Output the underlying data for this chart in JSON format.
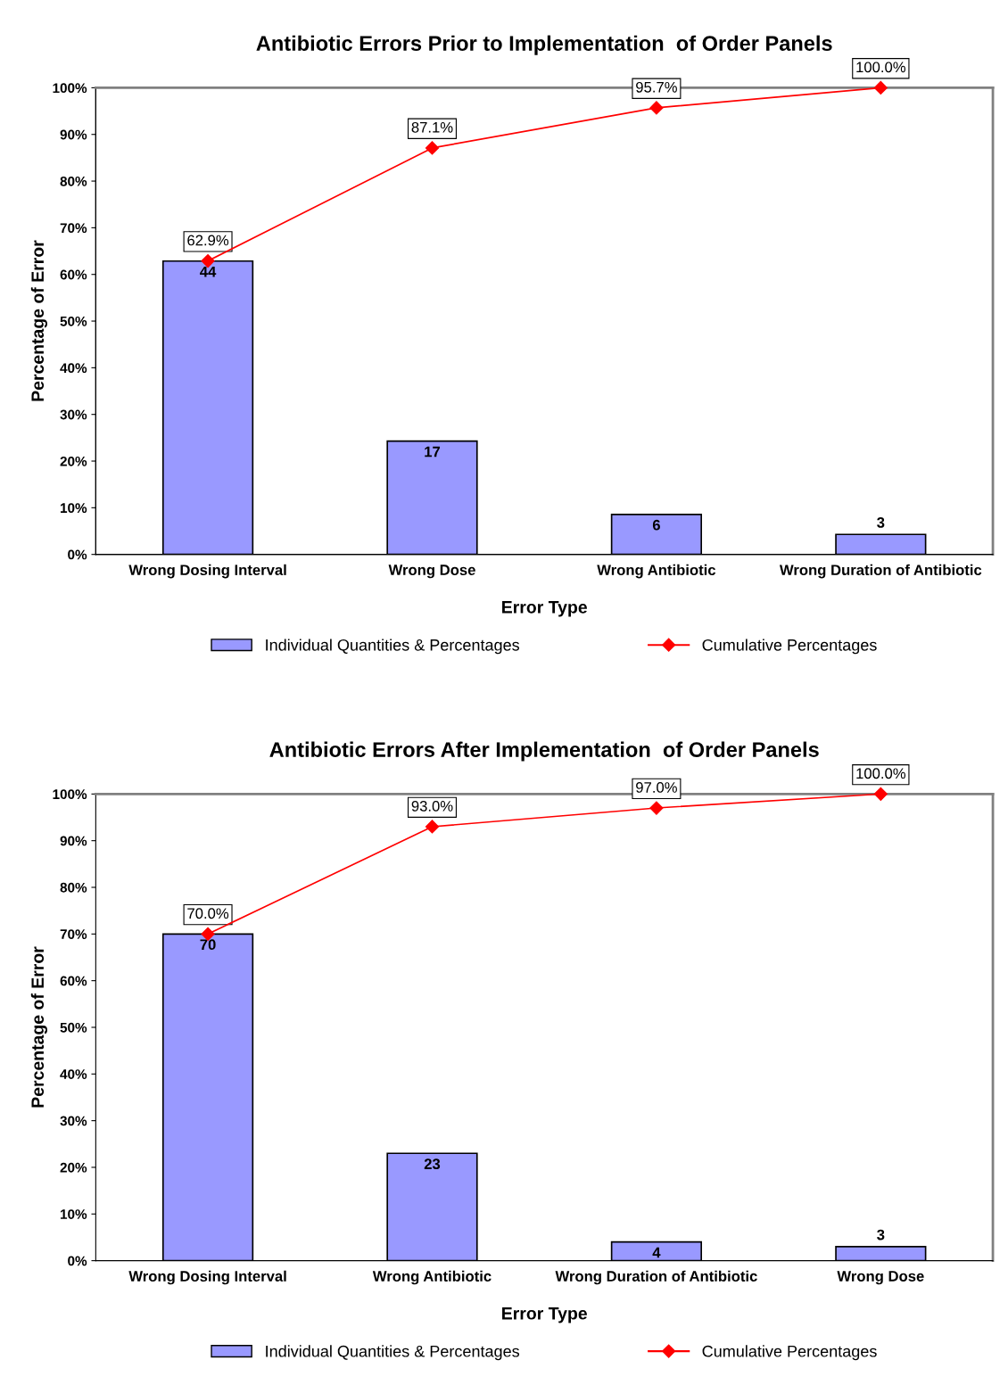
{
  "chart_data": [
    {
      "type": "bar",
      "title": "Antibiotic Errors Prior to Implementation  of Order Panels",
      "xlabel": "Error Type",
      "ylabel": "Percentage of Error",
      "categories": [
        "Wrong Dosing Interval",
        "Wrong Dose",
        "Wrong Antibiotic",
        "Wrong Duration of Antibiotic"
      ],
      "ylim": [
        0,
        100
      ],
      "yticks": [
        {
          "value": 0,
          "label": "0%"
        },
        {
          "value": 10,
          "label": "10%"
        },
        {
          "value": 20,
          "label": "20%"
        },
        {
          "value": 30,
          "label": "30%"
        },
        {
          "value": 40,
          "label": "40%"
        },
        {
          "value": 50,
          "label": "50%"
        },
        {
          "value": 60,
          "label": "60%"
        },
        {
          "value": 70,
          "label": "70%"
        },
        {
          "value": 80,
          "label": "80%"
        },
        {
          "value": 90,
          "label": "90%"
        },
        {
          "value": 100,
          "label": "100%"
        }
      ],
      "legend": "bottom",
      "grid": false,
      "y2lim": [
        0,
        70
      ],
      "series": [
        {
          "name": "Individual Quantities & Percentages",
          "axis": "y2",
          "color": "#9999ff",
          "values": [
            44,
            17,
            6,
            3
          ],
          "data_labels": true
        },
        {
          "name": "Cumulative Percentages",
          "type": "line",
          "color": "#ff0000",
          "marker": "diamond",
          "values": [
            62.9,
            87.1,
            95.7,
            100.0
          ],
          "value_labels": [
            "62.9%",
            "87.1%",
            "95.7%",
            "100.0%"
          ]
        }
      ]
    },
    {
      "type": "bar",
      "title": "Antibiotic Errors After Implementation  of Order Panels",
      "xlabel": "Error Type",
      "ylabel": "Percentage of Error",
      "categories": [
        "Wrong Dosing Interval",
        "Wrong Antibiotic",
        "Wrong Duration of Antibiotic",
        "Wrong Dose"
      ],
      "ylim": [
        0,
        100
      ],
      "yticks": [
        {
          "value": 0,
          "label": "0%"
        },
        {
          "value": 10,
          "label": "10%"
        },
        {
          "value": 20,
          "label": "20%"
        },
        {
          "value": 30,
          "label": "30%"
        },
        {
          "value": 40,
          "label": "40%"
        },
        {
          "value": 50,
          "label": "50%"
        },
        {
          "value": 60,
          "label": "60%"
        },
        {
          "value": 70,
          "label": "70%"
        },
        {
          "value": 80,
          "label": "80%"
        },
        {
          "value": 90,
          "label": "90%"
        },
        {
          "value": 100,
          "label": "100%"
        }
      ],
      "legend": "bottom",
      "grid": false,
      "series": [
        {
          "name": "Individual Quantities & Percentages",
          "color": "#9999ff",
          "values": [
            70,
            23,
            4,
            3
          ],
          "data_labels": true
        },
        {
          "name": "Cumulative Percentages",
          "type": "line",
          "color": "#ff0000",
          "marker": "diamond",
          "values": [
            70.0,
            93.0,
            97.0,
            100.0
          ],
          "value_labels": [
            "70.0%",
            "93.0%",
            "97.0%",
            "100.0%"
          ]
        }
      ]
    }
  ]
}
